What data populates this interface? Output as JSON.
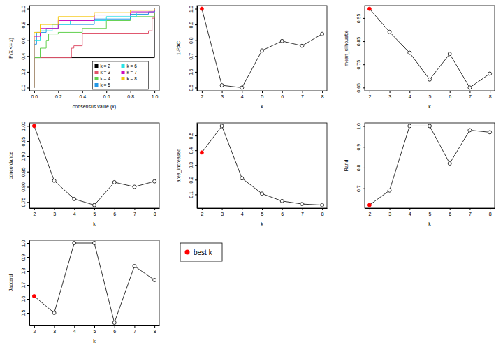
{
  "chart_data": [
    {
      "type": "line",
      "x_label": "consensus value (x)",
      "y_label": "P(X <= x)",
      "xlim": [
        -0.04,
        1.04
      ],
      "ylim": [
        -0.04,
        1.04
      ],
      "xticks": [
        {
          "value": 0,
          "label": "0.0"
        },
        0.2,
        0.4,
        0.6,
        0.8,
        {
          "value": 1,
          "label": "1.0"
        }
      ],
      "yticks": [
        {
          "value": 0,
          "label": "0.0"
        },
        0.2,
        0.4,
        0.6,
        0.8,
        {
          "value": 1,
          "label": "1.0"
        }
      ],
      "line_style": "step",
      "legend": "bottomright",
      "series": [
        {
          "name": "k = 2",
          "color": "#000000",
          "x": [
            0,
            0,
            1,
            1
          ],
          "values": [
            0,
            0.38,
            0.38,
            1
          ]
        },
        {
          "name": "k = 3",
          "color": "#DF536B",
          "x": [
            0,
            0,
            0.31,
            0.33,
            0.4,
            0.95,
            0.98,
            1
          ],
          "values": [
            0,
            0.38,
            0.5,
            0.53,
            0.69,
            0.72,
            0.88,
            1
          ]
        },
        {
          "name": "k = 4",
          "color": "#61D04F",
          "x": [
            0,
            0,
            0.05,
            0.1,
            0.12,
            0.2,
            0.4,
            0.6,
            0.8,
            1
          ],
          "values": [
            0,
            0.38,
            0.5,
            0.6,
            0.68,
            0.7,
            0.75,
            0.85,
            0.9,
            1
          ]
        },
        {
          "name": "k = 5",
          "color": "#2297E6",
          "x": [
            0,
            0,
            0.02,
            0.1,
            0.2,
            0.5,
            0.8,
            0.95,
            1
          ],
          "values": [
            0,
            0.55,
            0.7,
            0.75,
            0.8,
            0.87,
            0.93,
            0.96,
            1
          ]
        },
        {
          "name": "k = 6",
          "color": "#28E2E5",
          "x": [
            0,
            0,
            0.05,
            0.15,
            0.3,
            0.6,
            0.85,
            1
          ],
          "values": [
            0,
            0.6,
            0.72,
            0.8,
            0.85,
            0.9,
            0.95,
            1
          ]
        },
        {
          "name": "k = 7",
          "color": "#CD0BBC",
          "x": [
            0,
            0,
            0.05,
            0.2,
            0.5,
            0.8,
            1
          ],
          "values": [
            0,
            0.65,
            0.75,
            0.85,
            0.92,
            0.96,
            1
          ]
        },
        {
          "name": "k = 8",
          "color": "#F5C710",
          "x": [
            0,
            0,
            0.05,
            0.2,
            0.5,
            0.8,
            1
          ],
          "values": [
            0,
            0.7,
            0.8,
            0.9,
            0.95,
            0.98,
            1
          ]
        }
      ]
    },
    {
      "type": "line",
      "x_label": "k",
      "y_label": "1-PAC",
      "marker": "circle",
      "x": [
        2,
        3,
        4,
        5,
        6,
        7,
        8
      ],
      "values": [
        1.0,
        0.515,
        0.5,
        0.735,
        0.795,
        0.765,
        0.84
      ],
      "colors": [
        "red",
        "black",
        "black",
        "black",
        "black",
        "black",
        "black"
      ],
      "xlim": [
        1.76,
        8.24
      ],
      "ylim": [
        0.48,
        1.02
      ],
      "xticks": [
        2,
        3,
        4,
        5,
        6,
        7,
        8
      ],
      "yticks": [
        0.5,
        0.6,
        0.7,
        0.8,
        0.9,
        {
          "value": 1,
          "label": "1.0"
        }
      ]
    },
    {
      "type": "line",
      "x_label": "k",
      "y_label": "mean_silhouette",
      "marker": "circle",
      "x": [
        2,
        3,
        4,
        5,
        6,
        7,
        8
      ],
      "values": [
        0.99,
        0.89,
        0.8,
        0.685,
        0.795,
        0.65,
        0.71
      ],
      "colors": [
        "red",
        "black",
        "black",
        "black",
        "black",
        "black",
        "black"
      ],
      "xlim": [
        1.76,
        8.24
      ],
      "ylim": [
        0.636,
        1.004
      ],
      "xticks": [
        2,
        3,
        4,
        5,
        6,
        7,
        8
      ],
      "yticks": [
        0.65,
        0.75,
        0.85,
        0.95
      ]
    },
    {
      "type": "line",
      "x_label": "k",
      "y_label": "concordance",
      "marker": "circle",
      "x": [
        2,
        3,
        4,
        5,
        6,
        7,
        8
      ],
      "values": [
        1.0,
        0.82,
        0.76,
        0.74,
        0.815,
        0.8,
        0.818
      ],
      "colors": [
        "red",
        "black",
        "black",
        "black",
        "black",
        "black",
        "black"
      ],
      "xlim": [
        1.76,
        8.24
      ],
      "ylim": [
        0.73,
        1.01
      ],
      "xticks": [
        2,
        3,
        4,
        5,
        6,
        7,
        8
      ],
      "yticks": [
        0.75,
        {
          "value": 0.8,
          "label": "0.80"
        },
        0.85,
        {
          "value": 0.9,
          "label": "0.90"
        },
        0.95,
        {
          "value": 1,
          "label": "1.00"
        }
      ]
    },
    {
      "type": "line",
      "x_label": "k",
      "y_label": "area_increased",
      "marker": "circle",
      "x": [
        2,
        3,
        4,
        5,
        6,
        7,
        8
      ],
      "values": [
        0.385,
        0.565,
        0.21,
        0.105,
        0.055,
        0.035,
        0.028
      ],
      "colors": [
        "red",
        "black",
        "black",
        "black",
        "black",
        "black",
        "black"
      ],
      "xlim": [
        1.76,
        8.24
      ],
      "ylim": [
        0.007,
        0.586
      ],
      "xticks": [
        2,
        3,
        4,
        5,
        6,
        7,
        8
      ],
      "yticks": [
        0.1,
        0.2,
        0.3,
        0.4,
        0.5
      ]
    },
    {
      "type": "line",
      "x_label": "k",
      "y_label": "Rand",
      "marker": "circle",
      "x": [
        2,
        3,
        4,
        5,
        6,
        7,
        8
      ],
      "values": [
        0.62,
        0.69,
        1.0,
        1.0,
        0.82,
        0.98,
        0.97
      ],
      "colors": [
        "red",
        "black",
        "black",
        "black",
        "black",
        "black",
        "black"
      ],
      "xlim": [
        1.76,
        8.24
      ],
      "ylim": [
        0.605,
        1.015
      ],
      "xticks": [
        2,
        3,
        4,
        5,
        6,
        7,
        8
      ],
      "yticks": [
        0.7,
        0.8,
        0.9,
        {
          "value": 1,
          "label": "1.0"
        }
      ]
    },
    {
      "type": "line",
      "x_label": "k",
      "y_label": "Jaccard",
      "marker": "circle",
      "x": [
        2,
        3,
        4,
        5,
        6,
        7,
        8
      ],
      "values": [
        0.62,
        0.5,
        1.0,
        1.0,
        0.43,
        0.835,
        0.735
      ],
      "colors": [
        "red",
        "black",
        "black",
        "black",
        "black",
        "black",
        "black"
      ],
      "xlim": [
        1.76,
        8.24
      ],
      "ylim": [
        0.41,
        1.02
      ],
      "xticks": [
        2,
        3,
        4,
        5,
        6,
        7,
        8
      ],
      "yticks": [
        0.5,
        0.6,
        0.7,
        0.8,
        0.9,
        {
          "value": 1,
          "label": "1.0"
        }
      ]
    },
    {
      "type": "legend",
      "series": [
        {
          "name": "best k",
          "color": "red",
          "marker": "circle"
        }
      ]
    }
  ]
}
